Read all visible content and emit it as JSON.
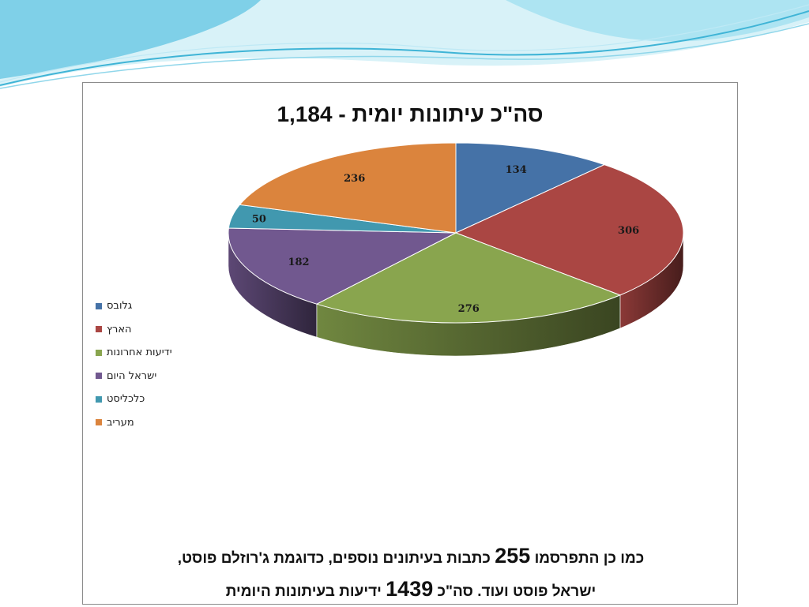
{
  "colors": {
    "background": "#ffffff",
    "wave_light": "#d8f2f8",
    "wave_mid": "#8fd6ea",
    "wave_dark": "#3fb4d6"
  },
  "chart_data": {
    "type": "pie",
    "title": "סה\"כ עיתונות יומית - 1,184",
    "three_d": true,
    "legend_position": "left",
    "categories": [
      "גלובס",
      "הארץ",
      "ידיעות אחרונות",
      "ישראל היום",
      "כלכליסט",
      "מעריב"
    ],
    "values": [
      134,
      306,
      276,
      182,
      50,
      236
    ],
    "colors": [
      "#4572a7",
      "#aa4643",
      "#89a54e",
      "#71588f",
      "#4198af",
      "#db843d"
    ]
  },
  "footnote": {
    "line1_before": "כמו כן התפרסמו ",
    "line1_number": "255",
    "line1_after": " כתבות בעיתונים נוספים, כדוגמת ג'רוזלם פוסט,",
    "line2_before": "ישראל פוסט ועוד.  סה\"כ ",
    "line2_number": "1439",
    "line2_after": " ידיעות בעיתונות היומית"
  }
}
